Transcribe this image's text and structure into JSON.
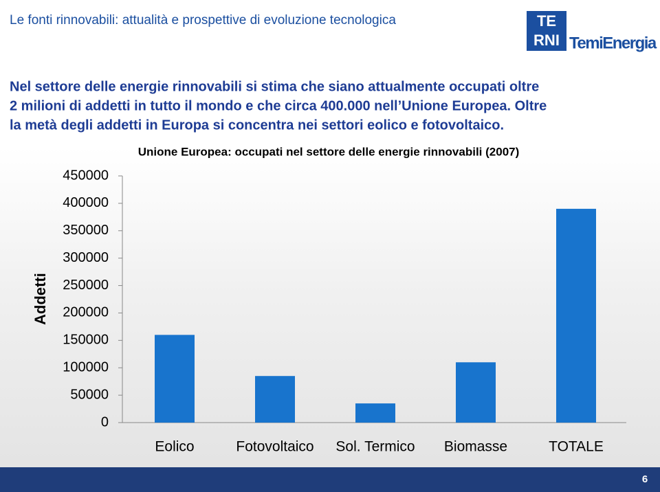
{
  "header": {
    "title": "Le fonti rinnovabili: attualità e prospettive di evoluzione tecnologica",
    "logo": [
      "TE",
      "RNI",
      "TemiEnergia"
    ]
  },
  "intro": [
    "Nel settore delle energie rinnovabili si stima che siano attualmente occupati oltre",
    "2 milioni di addetti in tutto il mondo e che circa 400.000 nell’Unione Europea. Oltre",
    "la metà degli addetti in Europa si concentra nei settori eolico e fotovoltaico."
  ],
  "page_number": "6",
  "chart_data": {
    "type": "bar",
    "title": "Unione Europea: occupati nel settore delle energie rinnovabili (2007)",
    "y_label": "Addetti",
    "categories": [
      "Eolico",
      "Fotovoltaico",
      "Sol. Termico",
      "Biomasse",
      "TOTALE"
    ],
    "values": [
      160000,
      85000,
      35000,
      110000,
      390000
    ],
    "color": "#1874cd",
    "ylim": [
      0,
      450000
    ],
    "yticks": [
      0,
      50000,
      100000,
      150000,
      200000,
      250000,
      300000,
      350000,
      400000,
      450000
    ],
    "grid": false
  }
}
